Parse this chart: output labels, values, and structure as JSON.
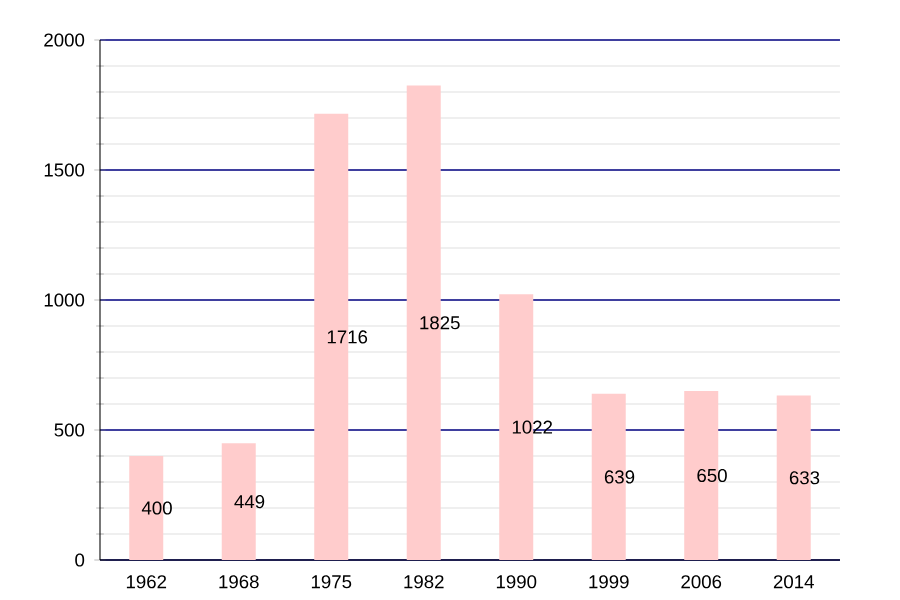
{
  "chart_data": {
    "type": "bar",
    "categories": [
      "1962",
      "1968",
      "1975",
      "1982",
      "1990",
      "1999",
      "2006",
      "2014"
    ],
    "values": [
      400,
      449,
      1716,
      1825,
      1022,
      639,
      650,
      633
    ],
    "color": "#ffcccc",
    "ylim": [
      0,
      2000
    ],
    "yticks": [
      0,
      500,
      1000,
      1500,
      2000
    ],
    "grid": true,
    "data_labels": true
  }
}
